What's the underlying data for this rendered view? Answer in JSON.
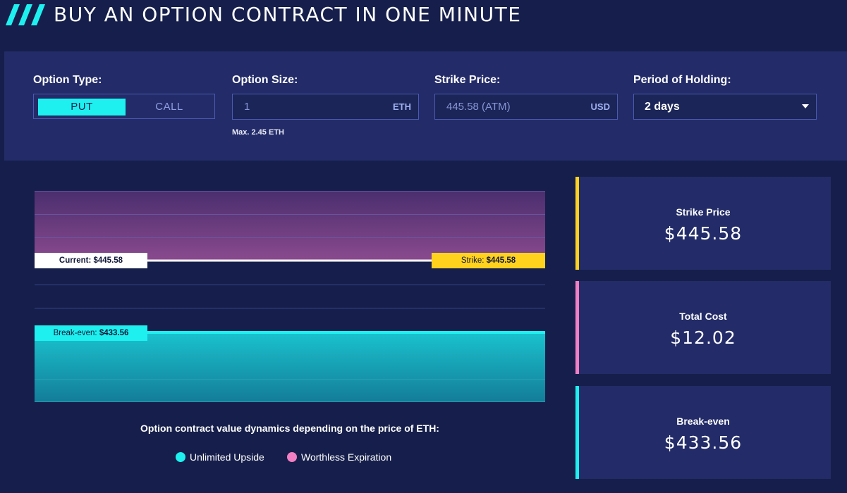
{
  "header": {
    "title": "BUY AN OPTION CONTRACT IN ONE MINUTE",
    "slash_color": "#1ef0f0"
  },
  "form": {
    "option_type": {
      "label": "Option Type:",
      "options": [
        "PUT",
        "CALL"
      ],
      "selected": "PUT"
    },
    "option_size": {
      "label": "Option Size:",
      "value": "1",
      "unit": "ETH",
      "hint": "Max. 2.45 ETH"
    },
    "strike_price": {
      "label": "Strike Price:",
      "value": "445.58 (ATM)",
      "unit": "USD"
    },
    "period": {
      "label": "Period of Holding:",
      "value": "2 days",
      "icon": "caret-down-icon"
    }
  },
  "chart": {
    "current_label": "Current:",
    "current_value": "$445.58",
    "strike_label": "Strike:",
    "strike_value": "$445.58",
    "breakeven_label": "Break-even:",
    "breakeven_value": "$433.56",
    "caption": "Option contract value dynamics depending on the price of ETH:",
    "legend": [
      {
        "label": "Unlimited Upside",
        "color": "#1ef0f0"
      },
      {
        "label": "Worthless Expiration",
        "color": "#f27fc3"
      }
    ]
  },
  "summary": {
    "strike": {
      "title": "Strike Price",
      "value": "$445.58",
      "accent": "#ffd21e"
    },
    "cost": {
      "title": "Total Cost",
      "value": "$12.02",
      "accent": "#f27fc3"
    },
    "breakeven": {
      "title": "Break-even",
      "value": "$433.56",
      "accent": "#1ef0f0"
    }
  },
  "colors": {
    "background": "#161f4b",
    "panel": "#232c68",
    "accent_cyan": "#1ef0f0",
    "accent_yellow": "#ffd21e",
    "accent_pink": "#f27fc3"
  }
}
